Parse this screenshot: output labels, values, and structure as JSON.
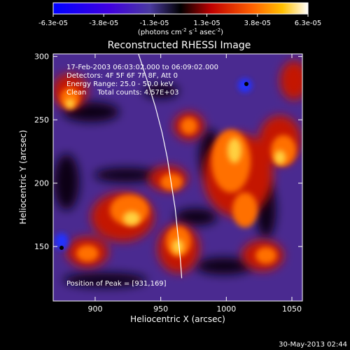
{
  "colorbar": {
    "ticks": [
      "-6.3e-05",
      "-3.8e-05",
      "-1.3e-05",
      "1.3e-05",
      "3.8e-05",
      "6.3e-05"
    ],
    "label_main": "(photons cm",
    "label_sup1": "-2",
    "label_mid1": " s",
    "label_sup2": "-1",
    "label_mid2": " asec",
    "label_sup3": "-2",
    "label_end": ")"
  },
  "chart_data": {
    "type": "heatmap",
    "title": "Reconstructed RHESSI Image",
    "xlabel": "Heliocentric X (arcsec)",
    "ylabel": "Heliocentric Y (arcsec)",
    "xlim": [
      868,
      1058
    ],
    "ylim": [
      107,
      302
    ],
    "xticks": [
      "900",
      "950",
      "1000",
      "1050"
    ],
    "yticks": [
      "150",
      "200",
      "250",
      "300"
    ],
    "colorbar_range": [
      -6.3e-05,
      6.3e-05
    ],
    "peak": [
      931,
      169
    ],
    "limb_curve": [
      [
        933,
        302
      ],
      [
        940,
        280
      ],
      [
        946,
        260
      ],
      [
        951,
        240
      ],
      [
        955,
        220
      ],
      [
        958,
        200
      ],
      [
        961,
        180
      ],
      [
        963,
        160
      ],
      [
        965,
        140
      ],
      [
        966,
        125
      ]
    ],
    "annotations": {
      "time": "17-Feb-2003 06:03:02.000 to 06:09:02.000",
      "detectors": "Detectors: 4F 5F 6F 7F 8F, Att 0",
      "energy": "Energy Range: 25.0 - 50.0 keV",
      "clean": "Clean     Total counts: 4.57E+03",
      "peak": "Position of Peak = [931,169]"
    }
  },
  "footer": {
    "timestamp": "30-May-2013 02:44"
  }
}
